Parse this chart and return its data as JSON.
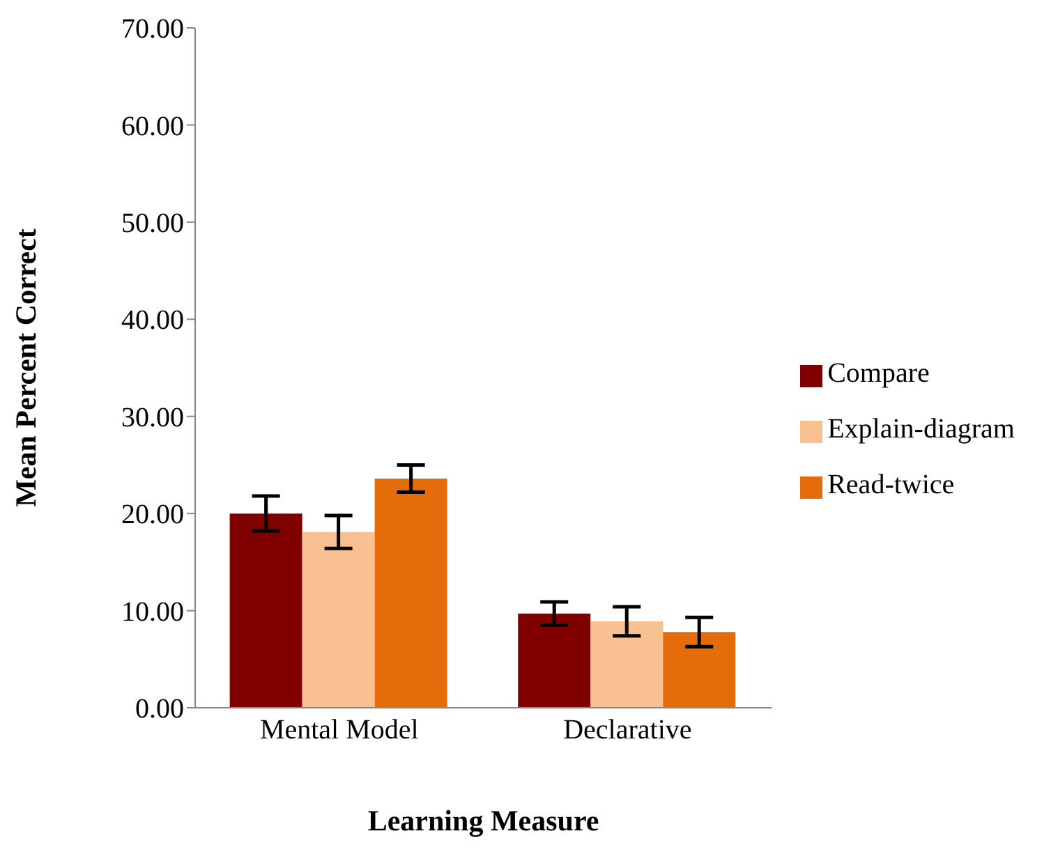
{
  "chart_data": {
    "type": "bar",
    "xlabel": "Learning Measure",
    "ylabel": "Mean Percent Correct",
    "categories": [
      "Mental Model",
      "Declarative"
    ],
    "series": [
      {
        "name": "Compare",
        "color": "#800000",
        "values": [
          20.0,
          9.7
        ],
        "errors": [
          1.8,
          1.2
        ]
      },
      {
        "name": "Explain-diagram",
        "color": "#f9c091",
        "values": [
          18.1,
          8.9
        ],
        "errors": [
          1.7,
          1.5
        ]
      },
      {
        "name": "Read-twice",
        "color": "#e46c0a",
        "values": [
          23.6,
          7.8
        ],
        "errors": [
          1.4,
          1.5
        ]
      }
    ],
    "ylim": [
      0,
      70
    ],
    "yticks": [
      {
        "value": 0,
        "label": "0.00"
      },
      {
        "value": 10,
        "label": "10.00"
      },
      {
        "value": 20,
        "label": "20.00"
      },
      {
        "value": 30,
        "label": "30.00"
      },
      {
        "value": 40,
        "label": "40.00"
      },
      {
        "value": 50,
        "label": "50.00"
      },
      {
        "value": 60,
        "label": "60.00"
      },
      {
        "value": 70,
        "label": "70.00"
      }
    ],
    "grid": false,
    "legend": "right"
  }
}
